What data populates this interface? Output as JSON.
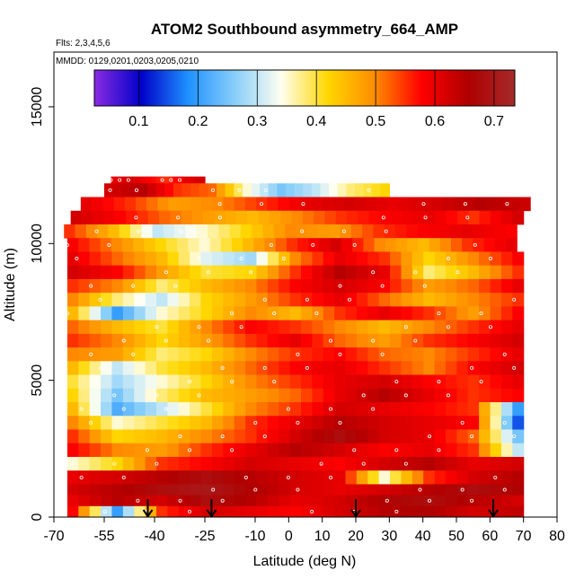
{
  "chart_data": {
    "type": "heatmap",
    "title": "ATOM2 Southbound asymmetry_664_AMP",
    "subtitle_flights": "Flts: 2,3,4,5,6",
    "subtitle_dates": "MMDD: 0129,0201,0203,0205,0210",
    "xlabel": "Latitude (deg N)",
    "ylabel": "Altitude (m)",
    "xlim": [
      -70,
      80
    ],
    "ylim": [
      0,
      17000
    ],
    "x_ticks": [
      -70,
      -55,
      -40,
      -25,
      -10,
      0,
      10,
      20,
      30,
      40,
      50,
      60,
      70,
      80
    ],
    "x_tick_labels": [
      "-70",
      "-55",
      "-40",
      "-25",
      "-10",
      "0",
      "10",
      "20",
      "30",
      "40",
      "50",
      "60",
      "70",
      "80"
    ],
    "y_ticks": [
      0,
      5000,
      10000,
      15000
    ],
    "y_tick_labels": [
      "0",
      "5000",
      "10000",
      "15000"
    ],
    "colorbar": {
      "min": 0.025,
      "max": 0.735,
      "ticks": [
        0.1,
        0.2,
        0.3,
        0.4,
        0.5,
        0.6,
        0.7
      ],
      "tick_labels": [
        "0.1",
        "0.2",
        "0.3",
        "0.4",
        "0.5",
        "0.6",
        "0.7"
      ],
      "colors": [
        "#8a2be2",
        "#0000c8",
        "#1e90ff",
        "#87cefa",
        "#fffff0",
        "#ffd700",
        "#ff8c00",
        "#ff0000",
        "#b00000",
        "#a52a2a"
      ]
    },
    "arrows_latitude": [
      -42,
      -23,
      20,
      61
    ],
    "grid": false,
    "layers": [
      {
        "alt": [
          12200,
          12450
        ],
        "lat": [
          -53,
          -25
        ],
        "v": [
          0.6,
          0.62,
          0.58,
          0.55,
          0.6,
          0.62
        ]
      },
      {
        "alt": [
          11700,
          12200
        ],
        "lat": [
          -55,
          30
        ],
        "v": [
          0.62,
          0.65,
          0.55,
          0.52,
          0.35,
          0.25,
          0.3,
          0.38,
          0.42
        ]
      },
      {
        "alt": [
          11200,
          11700
        ],
        "lat": [
          -62,
          72
        ],
        "v": [
          0.6,
          0.55,
          0.48,
          0.5,
          0.55,
          0.6,
          0.62,
          0.6,
          0.62,
          0.65,
          0.63
        ]
      },
      {
        "alt": [
          10700,
          11200
        ],
        "lat": [
          -65,
          70
        ],
        "v": [
          0.62,
          0.58,
          0.52,
          0.48,
          0.45,
          0.5,
          0.55,
          0.58,
          0.6,
          0.55,
          0.62
        ]
      },
      {
        "alt": [
          10200,
          10700
        ],
        "lat": [
          -67,
          68
        ],
        "v": [
          0.55,
          0.45,
          0.3,
          0.35,
          0.42,
          0.5,
          0.48,
          0.55,
          0.58,
          0.6,
          0.58
        ]
      },
      {
        "alt": [
          9700,
          10200
        ],
        "lat": [
          -66,
          68
        ],
        "v": [
          0.58,
          0.5,
          0.42,
          0.35,
          0.45,
          0.55,
          0.62,
          0.5,
          0.45,
          0.55,
          0.6
        ]
      },
      {
        "alt": [
          9200,
          9700
        ],
        "lat": [
          -66,
          70
        ],
        "v": [
          0.6,
          0.52,
          0.45,
          0.32,
          0.28,
          0.5,
          0.6,
          0.55,
          0.42,
          0.5,
          0.58
        ]
      },
      {
        "alt": [
          8700,
          9200
        ],
        "lat": [
          -66,
          70
        ],
        "v": [
          0.62,
          0.58,
          0.48,
          0.4,
          0.42,
          0.55,
          0.65,
          0.6,
          0.38,
          0.45,
          0.55
        ]
      },
      {
        "alt": [
          8200,
          8700
        ],
        "lat": [
          -66,
          70
        ],
        "v": [
          0.55,
          0.5,
          0.38,
          0.45,
          0.5,
          0.58,
          0.62,
          0.58,
          0.48,
          0.52,
          0.6
        ]
      },
      {
        "alt": [
          7700,
          8200
        ],
        "lat": [
          -66,
          70
        ],
        "v": [
          0.5,
          0.38,
          0.3,
          0.42,
          0.48,
          0.55,
          0.6,
          0.52,
          0.45,
          0.5,
          0.55
        ]
      },
      {
        "alt": [
          7200,
          7700
        ],
        "lat": [
          -66,
          70
        ],
        "v": [
          0.45,
          0.2,
          0.35,
          0.42,
          0.5,
          0.45,
          0.55,
          0.6,
          0.55,
          0.48,
          0.58
        ]
      },
      {
        "alt": [
          6700,
          7200
        ],
        "lat": [
          -66,
          70
        ],
        "v": [
          0.52,
          0.45,
          0.4,
          0.5,
          0.58,
          0.55,
          0.5,
          0.45,
          0.5,
          0.55,
          0.6
        ]
      },
      {
        "alt": [
          6200,
          6700
        ],
        "lat": [
          -66,
          70
        ],
        "v": [
          0.55,
          0.5,
          0.42,
          0.48,
          0.55,
          0.6,
          0.52,
          0.48,
          0.55,
          0.58,
          0.62
        ]
      },
      {
        "alt": [
          5700,
          6200
        ],
        "lat": [
          -66,
          70
        ],
        "v": [
          0.5,
          0.48,
          0.38,
          0.42,
          0.5,
          0.55,
          0.58,
          0.52,
          0.5,
          0.55,
          0.6
        ]
      },
      {
        "alt": [
          5200,
          5700
        ],
        "lat": [
          -66,
          70
        ],
        "v": [
          0.45,
          0.3,
          0.4,
          0.45,
          0.52,
          0.58,
          0.6,
          0.55,
          0.5,
          0.58,
          0.62
        ]
      },
      {
        "alt": [
          4700,
          5200
        ],
        "lat": [
          -66,
          70
        ],
        "v": [
          0.4,
          0.28,
          0.35,
          0.42,
          0.5,
          0.55,
          0.6,
          0.62,
          0.58,
          0.55,
          0.6
        ]
      },
      {
        "alt": [
          4200,
          4700
        ],
        "lat": [
          -66,
          70
        ],
        "v": [
          0.42,
          0.25,
          0.38,
          0.45,
          0.48,
          0.52,
          0.6,
          0.65,
          0.6,
          0.55,
          0.58
        ]
      },
      {
        "alt": [
          3700,
          4200
        ],
        "lat": [
          -66,
          70
        ],
        "v": [
          0.45,
          0.22,
          0.3,
          0.4,
          0.5,
          0.55,
          0.62,
          0.6,
          0.58,
          0.55,
          0.2
        ]
      },
      {
        "alt": [
          3200,
          3700
        ],
        "lat": [
          -66,
          70
        ],
        "v": [
          0.5,
          0.35,
          0.4,
          0.45,
          0.55,
          0.6,
          0.65,
          0.62,
          0.6,
          0.58,
          0.15
        ]
      },
      {
        "alt": [
          2700,
          3200
        ],
        "lat": [
          -66,
          70
        ],
        "v": [
          0.55,
          0.42,
          0.45,
          0.5,
          0.55,
          0.62,
          0.68,
          0.62,
          0.6,
          0.52,
          0.25
        ]
      },
      {
        "alt": [
          2200,
          2700
        ],
        "lat": [
          -66,
          70
        ],
        "v": [
          0.58,
          0.5,
          0.48,
          0.55,
          0.6,
          0.65,
          0.62,
          0.58,
          0.6,
          0.55,
          0.3
        ]
      },
      {
        "alt": [
          1700,
          2200
        ],
        "lat": [
          -66,
          70
        ],
        "v": [
          0.35,
          0.42,
          0.55,
          0.58,
          0.62,
          0.6,
          0.58,
          0.62,
          0.65,
          0.6,
          0.62
        ]
      },
      {
        "alt": [
          1200,
          1700
        ],
        "lat": [
          -66,
          70
        ],
        "v": [
          0.6,
          0.62,
          0.65,
          0.68,
          0.65,
          0.62,
          0.6,
          0.35,
          0.55,
          0.62,
          0.65
        ]
      },
      {
        "alt": [
          800,
          1200
        ],
        "lat": [
          -66,
          70
        ],
        "v": [
          0.62,
          0.65,
          0.68,
          0.7,
          0.66,
          0.62,
          0.6,
          0.62,
          0.65,
          0.68,
          0.66
        ]
      },
      {
        "alt": [
          400,
          800
        ],
        "lat": [
          -66,
          70
        ],
        "v": [
          0.6,
          0.65,
          0.62,
          0.68,
          0.65,
          0.6,
          0.62,
          0.66,
          0.68,
          0.65,
          0.62
        ]
      },
      {
        "alt": [
          0,
          400
        ],
        "lat": [
          -66,
          70
        ],
        "v": [
          0.58,
          0.2,
          0.55,
          0.62,
          0.6,
          0.58,
          0.62,
          0.65,
          0.66,
          0.62,
          0.64
        ]
      }
    ]
  }
}
